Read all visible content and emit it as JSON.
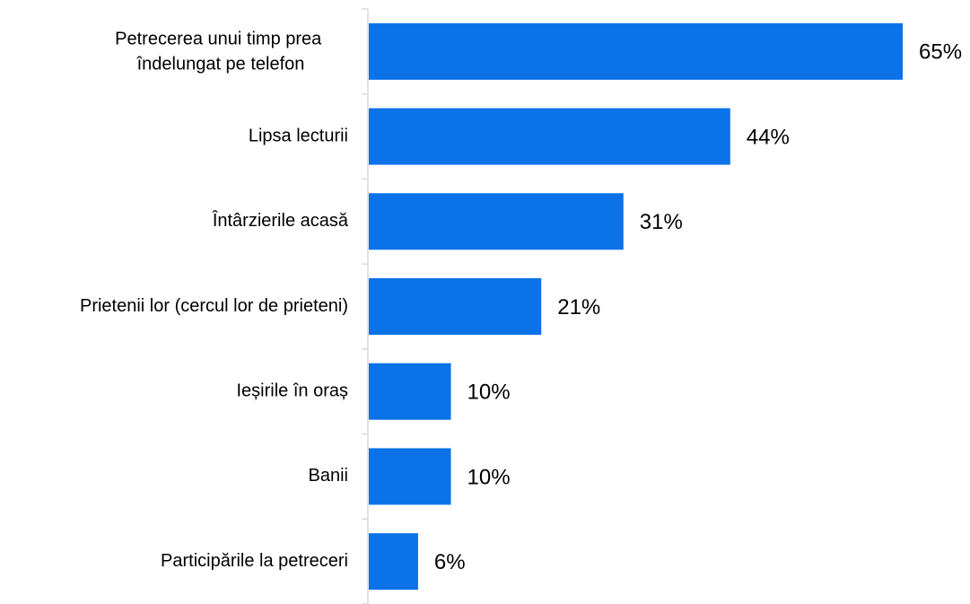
{
  "chart_data": {
    "type": "bar",
    "orientation": "horizontal",
    "categories": [
      "Petrecerea unui timp prea îndelungat pe telefon",
      "Lipsa lecturii",
      "Întârzierile acasă",
      "Prietenii lor (cercul lor de prieteni)",
      "Ieșirile în oraș",
      "Banii",
      "Participările la petreceri"
    ],
    "values": [
      65,
      44,
      31,
      21,
      10,
      10,
      6
    ],
    "value_labels": [
      "65%",
      "44%",
      "31%",
      "21%",
      "10%",
      "10%",
      "6%"
    ],
    "color": "#0b72e8"
  }
}
